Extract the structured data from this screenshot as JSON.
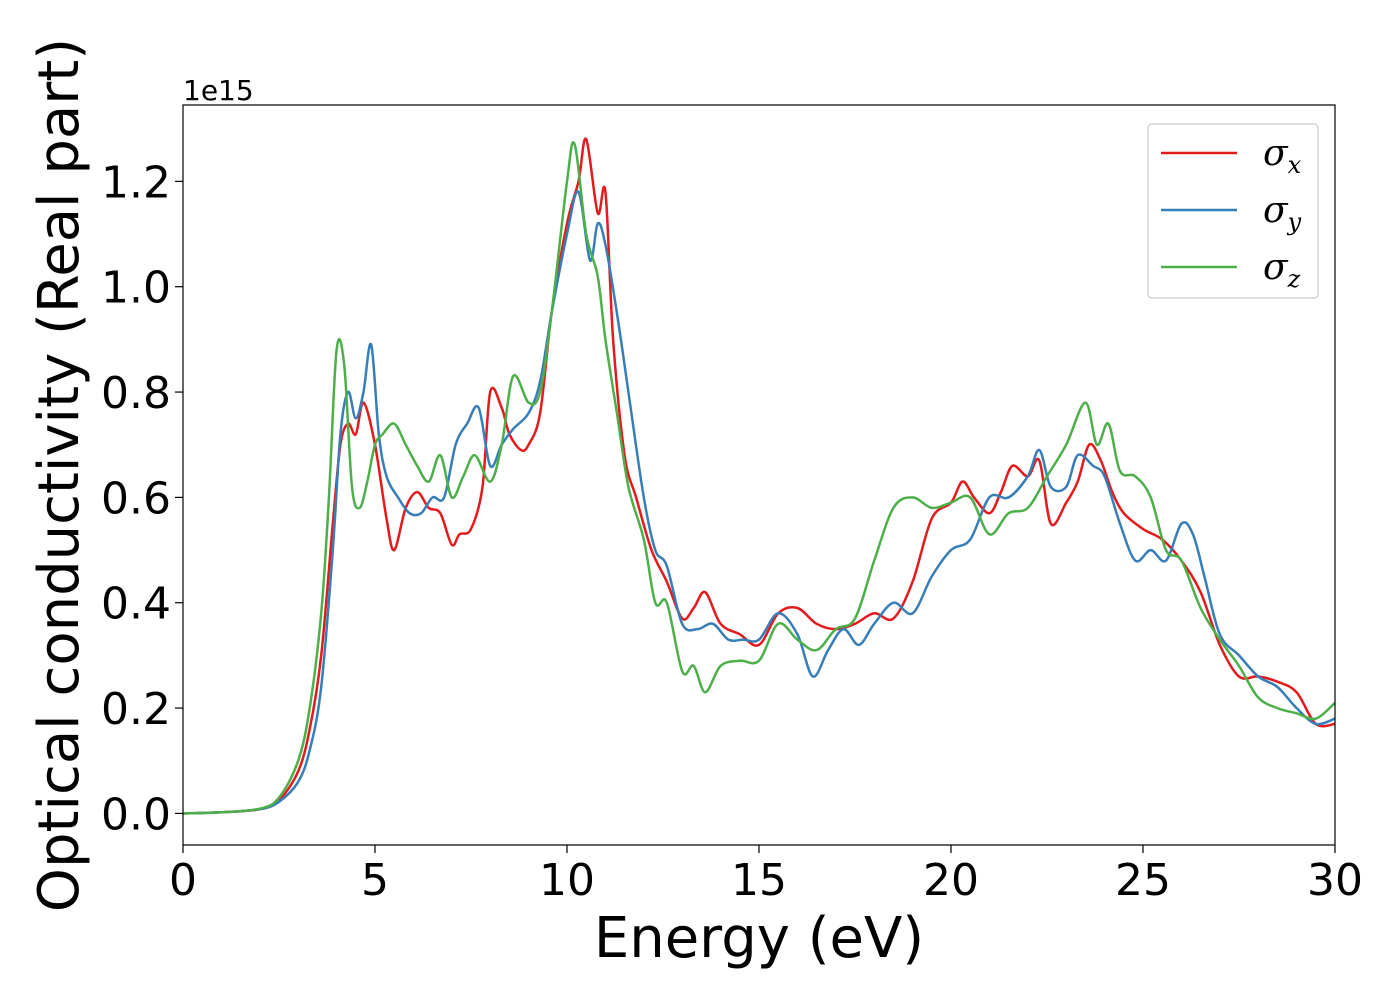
{
  "chart_data": {
    "type": "line",
    "title": "",
    "xlabel": "Energy (eV)",
    "ylabel": "Optical conductivity (Real part)",
    "y_offset_label": "1e15",
    "xlim": [
      0,
      30
    ],
    "ylim": [
      -0.06,
      1.345
    ],
    "x_ticks": [
      0,
      5,
      10,
      15,
      20,
      25,
      30
    ],
    "y_ticks": [
      0.0,
      0.2,
      0.4,
      0.6,
      0.8,
      1.0,
      1.2
    ],
    "x_tick_labels": [
      "0",
      "5",
      "10",
      "15",
      "20",
      "25",
      "30"
    ],
    "y_tick_labels": [
      "0.0",
      "0.2",
      "0.4",
      "0.6",
      "0.8",
      "1.0",
      "1.2"
    ],
    "grid": false,
    "legend_position": "top-right",
    "series": [
      {
        "name": "σx",
        "name_base": "σ",
        "name_sub": "x",
        "color": "#e41a1c",
        "x": [
          0,
          1,
          2,
          2.5,
          3,
          3.3,
          3.6,
          3.9,
          4.1,
          4.3,
          4.5,
          4.7,
          5.0,
          5.3,
          5.5,
          5.8,
          6.1,
          6.4,
          6.7,
          7.0,
          7.2,
          7.5,
          7.8,
          8.0,
          8.3,
          8.5,
          8.8,
          9.0,
          9.3,
          9.6,
          10.0,
          10.3,
          10.5,
          10.8,
          11.0,
          11.2,
          11.5,
          11.8,
          12.2,
          12.6,
          13.0,
          13.3,
          13.6,
          14.0,
          14.5,
          15.0,
          15.5,
          16.0,
          16.5,
          17.0,
          17.5,
          18.0,
          18.5,
          19.0,
          19.5,
          20.0,
          20.3,
          20.6,
          21.0,
          21.3,
          21.6,
          22.0,
          22.3,
          22.6,
          23.0,
          23.3,
          23.6,
          23.9,
          24.2,
          24.5,
          25.0,
          25.5,
          26.0,
          26.5,
          27.0,
          27.5,
          28.0,
          28.5,
          29.0,
          29.5,
          30.0
        ],
        "values": [
          0.0,
          0.002,
          0.008,
          0.025,
          0.08,
          0.16,
          0.3,
          0.55,
          0.7,
          0.74,
          0.72,
          0.78,
          0.7,
          0.56,
          0.5,
          0.58,
          0.61,
          0.58,
          0.57,
          0.51,
          0.53,
          0.54,
          0.62,
          0.8,
          0.77,
          0.72,
          0.69,
          0.7,
          0.76,
          0.95,
          1.12,
          1.2,
          1.28,
          1.14,
          1.18,
          0.9,
          0.68,
          0.6,
          0.5,
          0.44,
          0.37,
          0.39,
          0.42,
          0.36,
          0.34,
          0.32,
          0.38,
          0.39,
          0.36,
          0.35,
          0.36,
          0.38,
          0.37,
          0.44,
          0.56,
          0.59,
          0.63,
          0.6,
          0.57,
          0.61,
          0.66,
          0.64,
          0.67,
          0.55,
          0.59,
          0.63,
          0.7,
          0.67,
          0.61,
          0.57,
          0.54,
          0.52,
          0.48,
          0.42,
          0.32,
          0.26,
          0.26,
          0.25,
          0.23,
          0.17,
          0.17
        ]
      },
      {
        "name": "σy",
        "name_base": "σ",
        "name_sub": "y",
        "color": "#377eb8",
        "x": [
          0,
          1,
          2,
          2.5,
          3,
          3.3,
          3.6,
          3.9,
          4.1,
          4.3,
          4.5,
          4.7,
          4.9,
          5.1,
          5.3,
          5.6,
          5.9,
          6.2,
          6.5,
          6.8,
          7.1,
          7.4,
          7.7,
          8.0,
          8.3,
          8.6,
          9.0,
          9.3,
          9.6,
          10.0,
          10.3,
          10.6,
          10.8,
          11.0,
          11.3,
          11.6,
          12.0,
          12.3,
          12.6,
          13.0,
          13.4,
          13.8,
          14.2,
          14.6,
          15.0,
          15.5,
          16.0,
          16.4,
          16.8,
          17.2,
          17.6,
          18.0,
          18.5,
          19.0,
          19.5,
          20.0,
          20.5,
          21.0,
          21.5,
          22.0,
          22.3,
          22.6,
          23.0,
          23.3,
          23.7,
          24.0,
          24.4,
          24.8,
          25.2,
          25.6,
          26.0,
          26.3,
          26.6,
          27.0,
          27.5,
          28.0,
          28.5,
          29.0,
          29.5,
          30.0
        ],
        "values": [
          0.0,
          0.002,
          0.008,
          0.022,
          0.06,
          0.12,
          0.24,
          0.5,
          0.72,
          0.8,
          0.75,
          0.8,
          0.89,
          0.72,
          0.64,
          0.6,
          0.57,
          0.57,
          0.6,
          0.6,
          0.7,
          0.74,
          0.77,
          0.66,
          0.7,
          0.73,
          0.76,
          0.82,
          0.95,
          1.1,
          1.18,
          1.05,
          1.12,
          1.08,
          0.95,
          0.8,
          0.6,
          0.5,
          0.47,
          0.36,
          0.35,
          0.36,
          0.33,
          0.33,
          0.33,
          0.38,
          0.34,
          0.26,
          0.31,
          0.35,
          0.32,
          0.36,
          0.4,
          0.38,
          0.45,
          0.5,
          0.52,
          0.6,
          0.6,
          0.64,
          0.69,
          0.62,
          0.62,
          0.68,
          0.66,
          0.64,
          0.55,
          0.48,
          0.5,
          0.48,
          0.55,
          0.53,
          0.45,
          0.34,
          0.3,
          0.26,
          0.24,
          0.2,
          0.17,
          0.18
        ]
      },
      {
        "name": "σz",
        "name_base": "σ",
        "name_sub": "z",
        "color": "#4daf4a",
        "x": [
          0,
          1,
          2,
          2.5,
          3,
          3.3,
          3.6,
          3.8,
          4.0,
          4.2,
          4.4,
          4.6,
          4.8,
          5.0,
          5.2,
          5.5,
          5.8,
          6.1,
          6.4,
          6.7,
          7.0,
          7.3,
          7.6,
          8.0,
          8.3,
          8.6,
          9.0,
          9.3,
          9.6,
          10.0,
          10.2,
          10.5,
          10.8,
          11.0,
          11.3,
          11.6,
          12.0,
          12.3,
          12.6,
          13.0,
          13.3,
          13.6,
          14.0,
          14.5,
          15.0,
          15.5,
          16.0,
          16.5,
          17.0,
          17.5,
          18.0,
          18.5,
          19.0,
          19.5,
          20.0,
          20.5,
          21.0,
          21.5,
          22.0,
          22.5,
          23.0,
          23.5,
          23.8,
          24.1,
          24.4,
          24.8,
          25.2,
          25.6,
          26.0,
          26.5,
          27.0,
          27.5,
          28.0,
          28.5,
          29.0,
          29.5,
          30.0
        ],
        "values": [
          0.0,
          0.002,
          0.009,
          0.03,
          0.1,
          0.2,
          0.38,
          0.6,
          0.88,
          0.85,
          0.62,
          0.58,
          0.63,
          0.7,
          0.72,
          0.74,
          0.7,
          0.66,
          0.63,
          0.68,
          0.6,
          0.64,
          0.68,
          0.63,
          0.7,
          0.83,
          0.78,
          0.8,
          0.95,
          1.2,
          1.27,
          1.1,
          1.02,
          0.9,
          0.76,
          0.62,
          0.52,
          0.4,
          0.4,
          0.27,
          0.28,
          0.23,
          0.28,
          0.29,
          0.29,
          0.36,
          0.33,
          0.31,
          0.35,
          0.37,
          0.48,
          0.58,
          0.6,
          0.58,
          0.59,
          0.6,
          0.53,
          0.57,
          0.58,
          0.64,
          0.7,
          0.78,
          0.7,
          0.74,
          0.65,
          0.64,
          0.6,
          0.5,
          0.48,
          0.39,
          0.33,
          0.28,
          0.22,
          0.2,
          0.19,
          0.18,
          0.21
        ]
      }
    ]
  }
}
